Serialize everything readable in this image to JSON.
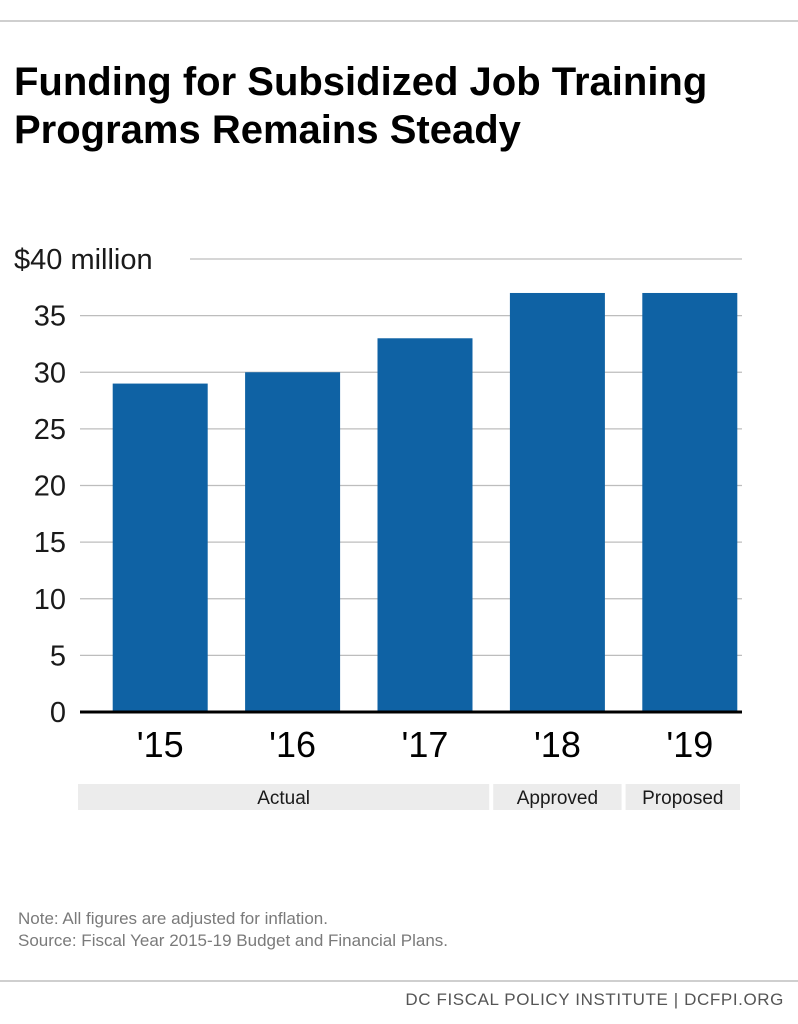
{
  "title": "Funding for Subsidized Job Training\nPrograms  Remains Steady",
  "chart_data": {
    "type": "bar",
    "title": "Funding for Subsidized Job Training Programs  Remains Steady",
    "categories": [
      "'15",
      "'16",
      "'17",
      "'18",
      "'19"
    ],
    "values": [
      29,
      30,
      33,
      37,
      37
    ],
    "ylim": [
      0,
      40
    ],
    "yticks": [
      0,
      5,
      10,
      15,
      20,
      25,
      30,
      35,
      40
    ],
    "ytick_labels": [
      "0",
      "5",
      "10",
      "15",
      "20",
      "25",
      "30",
      "35",
      "$40 million"
    ],
    "grid": true,
    "bar_color": "#0f62a4",
    "groups": [
      {
        "label": "Actual",
        "categories": [
          "'15",
          "'16",
          "'17"
        ]
      },
      {
        "label": "Approved",
        "categories": [
          "'18"
        ]
      },
      {
        "label": "Proposed",
        "categories": [
          "'19"
        ]
      }
    ],
    "group_band_color": "#ececec"
  },
  "notes": {
    "note": "Note: All figures are adjusted for inflation.",
    "source": "Source: Fiscal Year 2015-19 Budget and Financial Plans."
  },
  "footer": "DC FISCAL POLICY INSTITUTE | DCFPI.ORG"
}
